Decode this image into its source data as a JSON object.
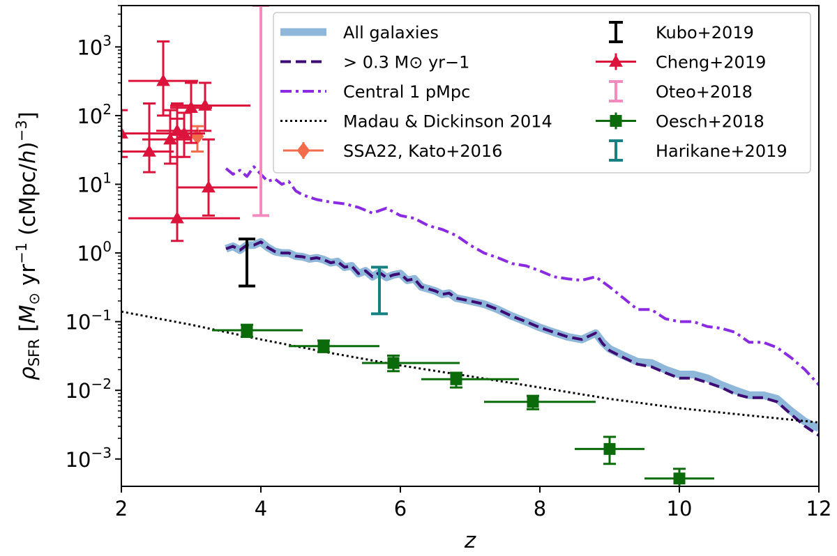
{
  "chart_data": {
    "type": "line",
    "title": "",
    "xlabel": "z",
    "ylabel": "ρSFR [M⊙ yr−1 (cMpc/h)−3]",
    "ylabel_parts": {
      "rho": "ρ",
      "rho_sub": "SFR",
      "bracket_open": " [",
      "m": "M",
      "sun": "⊙",
      "yr": " yr",
      "yr_exp": "−1",
      "units": " (cMpc/",
      "h": "h",
      "close": ")",
      "close_exp": "−3",
      "bracket_close": "]"
    },
    "xlim": [
      2,
      12
    ],
    "ylim": [
      0.0004,
      4000
    ],
    "yscale": "log",
    "grid": false,
    "legend_placement": "top-right",
    "x_ticks": [
      {
        "value": 2,
        "label": "2"
      },
      {
        "value": 4,
        "label": "4"
      },
      {
        "value": 6,
        "label": "6"
      },
      {
        "value": 8,
        "label": "8"
      },
      {
        "value": 10,
        "label": "10"
      },
      {
        "value": 12,
        "label": "12"
      }
    ],
    "y_ticks": [
      {
        "value": 0.001,
        "base": "10",
        "exp": "−3"
      },
      {
        "value": 0.01,
        "base": "10",
        "exp": "−2"
      },
      {
        "value": 0.1,
        "base": "10",
        "exp": "−1"
      },
      {
        "value": 1,
        "base": "10",
        "exp": "0"
      },
      {
        "value": 10,
        "base": "10",
        "exp": "1"
      },
      {
        "value": 100,
        "base": "10",
        "exp": "2"
      },
      {
        "value": 1000,
        "base": "10",
        "exp": "3"
      }
    ],
    "series": [
      {
        "key": "all",
        "name": "All galaxies",
        "style": "solid-thick",
        "color": "#8fb7d9",
        "x": [
          3.5,
          3.6,
          3.7,
          3.8,
          3.9,
          4.0,
          4.1,
          4.2,
          4.3,
          4.4,
          4.5,
          4.6,
          4.7,
          4.8,
          4.9,
          5.0,
          5.1,
          5.2,
          5.3,
          5.4,
          5.5,
          5.6,
          5.7,
          5.8,
          5.9,
          6.0,
          6.1,
          6.2,
          6.3,
          6.4,
          6.5,
          6.6,
          6.7,
          6.8,
          6.9,
          7.0,
          7.2,
          7.4,
          7.6,
          7.8,
          8.0,
          8.2,
          8.4,
          8.6,
          8.8,
          8.9,
          9.0,
          9.2,
          9.4,
          9.6,
          9.8,
          10.0,
          10.2,
          10.4,
          10.6,
          10.8,
          11.0,
          11.2,
          11.4,
          11.6,
          11.8,
          12.0
        ],
        "values": [
          1.15,
          1.25,
          1.1,
          1.3,
          1.3,
          1.45,
          1.2,
          1.05,
          1.0,
          1.0,
          0.9,
          0.88,
          0.82,
          0.85,
          0.8,
          0.72,
          0.75,
          0.62,
          0.65,
          0.5,
          0.55,
          0.45,
          0.52,
          0.44,
          0.48,
          0.5,
          0.4,
          0.42,
          0.32,
          0.3,
          0.28,
          0.25,
          0.26,
          0.22,
          0.21,
          0.2,
          0.18,
          0.15,
          0.12,
          0.1,
          0.082,
          0.07,
          0.06,
          0.055,
          0.068,
          0.05,
          0.04,
          0.032,
          0.026,
          0.025,
          0.02,
          0.017,
          0.017,
          0.015,
          0.012,
          0.01,
          0.0085,
          0.0085,
          0.0075,
          0.005,
          0.0035,
          0.0028
        ]
      },
      {
        "key": "sfr03",
        "name": "> 0.3 M⊙ yr−1",
        "style": "dashed",
        "color": "#3d0b73",
        "x": [
          3.5,
          3.6,
          3.7,
          3.8,
          3.9,
          4.0,
          4.1,
          4.2,
          4.3,
          4.4,
          4.5,
          4.6,
          4.7,
          4.8,
          4.9,
          5.0,
          5.1,
          5.2,
          5.3,
          5.4,
          5.5,
          5.6,
          5.7,
          5.8,
          5.9,
          6.0,
          6.1,
          6.2,
          6.3,
          6.4,
          6.5,
          6.6,
          6.7,
          6.8,
          6.9,
          7.0,
          7.2,
          7.4,
          7.6,
          7.8,
          8.0,
          8.2,
          8.4,
          8.6,
          8.8,
          8.9,
          9.0,
          9.2,
          9.4,
          9.6,
          9.8,
          10.0,
          10.2,
          10.4,
          10.6,
          10.8,
          11.0,
          11.2,
          11.4,
          11.6,
          11.8,
          12.0
        ],
        "values": [
          1.15,
          1.25,
          1.1,
          1.3,
          1.3,
          1.45,
          1.2,
          1.05,
          1.0,
          1.0,
          0.9,
          0.88,
          0.82,
          0.85,
          0.8,
          0.72,
          0.75,
          0.62,
          0.65,
          0.5,
          0.55,
          0.45,
          0.52,
          0.44,
          0.48,
          0.5,
          0.4,
          0.42,
          0.32,
          0.3,
          0.28,
          0.25,
          0.26,
          0.22,
          0.21,
          0.2,
          0.18,
          0.15,
          0.12,
          0.1,
          0.082,
          0.07,
          0.06,
          0.055,
          0.068,
          0.048,
          0.038,
          0.03,
          0.024,
          0.022,
          0.018,
          0.015,
          0.015,
          0.013,
          0.011,
          0.0088,
          0.0078,
          0.0078,
          0.0068,
          0.0045,
          0.003,
          0.0022
        ]
      },
      {
        "key": "central",
        "name": "Central 1 pMpc",
        "style": "dashdot",
        "color": "#8a2be2",
        "x": [
          3.5,
          3.6,
          3.7,
          3.8,
          3.9,
          4.0,
          4.1,
          4.2,
          4.3,
          4.4,
          4.5,
          4.6,
          4.8,
          5.0,
          5.2,
          5.4,
          5.6,
          5.8,
          6.0,
          6.2,
          6.4,
          6.6,
          6.8,
          7.0,
          7.2,
          7.4,
          7.6,
          7.8,
          8.0,
          8.2,
          8.4,
          8.6,
          8.8,
          9.0,
          9.2,
          9.4,
          9.6,
          9.8,
          10.0,
          10.2,
          10.4,
          10.6,
          10.8,
          11.0,
          11.2,
          11.4,
          11.6,
          11.8,
          12.0
        ],
        "values": [
          17,
          14,
          16,
          13,
          18,
          14,
          11,
          12,
          10,
          11,
          8,
          7,
          6,
          5.5,
          5.2,
          4.6,
          3.8,
          4.5,
          3.5,
          3.2,
          2.5,
          2.2,
          1.8,
          1.3,
          1.0,
          0.85,
          0.7,
          0.65,
          0.55,
          0.45,
          0.42,
          0.4,
          0.45,
          0.32,
          0.22,
          0.15,
          0.15,
          0.11,
          0.1,
          0.1,
          0.085,
          0.08,
          0.07,
          0.05,
          0.05,
          0.042,
          0.03,
          0.02,
          0.012
        ]
      },
      {
        "key": "madau",
        "name": "Madau & Dickinson 2014",
        "style": "dotted",
        "color": "#000000",
        "x": [
          2,
          3,
          4,
          5,
          6,
          7,
          8,
          9,
          10,
          11,
          12
        ],
        "values": [
          0.14,
          0.09,
          0.055,
          0.035,
          0.023,
          0.016,
          0.011,
          0.0075,
          0.0055,
          0.0043,
          0.0034
        ]
      }
    ],
    "observations": [
      {
        "key": "kato",
        "name": "SSA22, Kato+2016",
        "marker": "diamond",
        "color": "#f26b4b",
        "points": [
          {
            "x": 3.09,
            "y": 50,
            "y_low": 30,
            "y_high": 70,
            "x_low": 3.09,
            "x_high": 3.09
          }
        ]
      },
      {
        "key": "kubo",
        "name": "Kubo+2019",
        "marker": "none",
        "color": "#000000",
        "points": [
          {
            "x": 3.8,
            "y": 0.75,
            "y_low": 0.33,
            "y_high": 1.6,
            "x_low": 3.8,
            "x_high": 3.8
          }
        ]
      },
      {
        "key": "cheng",
        "name": "Cheng+2019",
        "marker": "triangle",
        "color": "#dc143c",
        "points": [
          {
            "x": 2.0,
            "y": 55,
            "y_low": 25,
            "y_high": 120,
            "x_low": 1.9,
            "x_high": 2.6
          },
          {
            "x": 2.4,
            "y": 30,
            "y_low": 15,
            "y_high": 150,
            "x_low": 1.95,
            "x_high": 2.75
          },
          {
            "x": 2.6,
            "y": 320,
            "y_low": 100,
            "y_high": 1200,
            "x_low": 2.1,
            "x_high": 3.1
          },
          {
            "x": 2.7,
            "y": 45,
            "y_low": 20,
            "y_high": 120,
            "x_low": 2.3,
            "x_high": 3.0
          },
          {
            "x": 2.8,
            "y": 60,
            "y_low": 25,
            "y_high": 150,
            "x_low": 2.5,
            "x_high": 3.1
          },
          {
            "x": 2.9,
            "y": 55,
            "y_low": 25,
            "y_high": 110,
            "x_low": 2.6,
            "x_high": 3.2
          },
          {
            "x": 3.0,
            "y": 130,
            "y_low": 40,
            "y_high": 300,
            "x_low": 2.7,
            "x_high": 3.3
          },
          {
            "x": 3.2,
            "y": 140,
            "y_low": 60,
            "y_high": 300,
            "x_low": 2.7,
            "x_high": 3.85
          },
          {
            "x": 2.8,
            "y": 3.2,
            "y_low": 1.5,
            "y_high": 90,
            "x_low": 2.1,
            "x_high": 3.7
          },
          {
            "x": 3.25,
            "y": 9,
            "y_low": 3.5,
            "y_high": 45,
            "x_low": 2.8,
            "x_high": 3.95
          }
        ]
      },
      {
        "key": "oteo",
        "name": "Oteo+2018",
        "marker": "none",
        "color": "#f48bbf",
        "points": [
          {
            "x": 4.0,
            "y": 3.5,
            "y_low": 3.5,
            "y_high": 4000,
            "x_low": 4.0,
            "x_high": 4.0
          }
        ]
      },
      {
        "key": "oesch",
        "name": "Oesch+2018",
        "marker": "square",
        "color": "#0b6b0b",
        "points": [
          {
            "x": 3.8,
            "y": 0.075,
            "y_low": 0.06,
            "y_high": 0.09,
            "x_low": 3.3,
            "x_high": 4.6
          },
          {
            "x": 4.9,
            "y": 0.044,
            "y_low": 0.036,
            "y_high": 0.053,
            "x_low": 4.4,
            "x_high": 5.7
          },
          {
            "x": 5.9,
            "y": 0.025,
            "y_low": 0.019,
            "y_high": 0.032,
            "x_low": 5.45,
            "x_high": 6.85
          },
          {
            "x": 6.8,
            "y": 0.0145,
            "y_low": 0.011,
            "y_high": 0.018,
            "x_low": 6.3,
            "x_high": 7.7
          },
          {
            "x": 7.9,
            "y": 0.0068,
            "y_low": 0.0053,
            "y_high": 0.0083,
            "x_low": 7.2,
            "x_high": 8.8
          },
          {
            "x": 9.0,
            "y": 0.0014,
            "y_low": 0.00085,
            "y_high": 0.0021,
            "x_low": 8.5,
            "x_high": 9.5
          },
          {
            "x": 10.0,
            "y": 0.00052,
            "y_low": 0.00035,
            "y_high": 0.00072,
            "x_low": 9.5,
            "x_high": 10.5
          }
        ]
      },
      {
        "key": "harikane",
        "name": "Harikane+2019",
        "marker": "none",
        "color": "#178080",
        "points": [
          {
            "x": 5.7,
            "y": 0.3,
            "y_low": 0.13,
            "y_high": 0.62,
            "x_low": 5.7,
            "x_high": 5.7
          }
        ]
      }
    ],
    "legend_left": [
      {
        "label": "All galaxies",
        "ref": "all"
      },
      {
        "label": "> 0.3 M⊙ yr−1",
        "ref": "sfr03"
      },
      {
        "label": "Central 1 pMpc",
        "ref": "central"
      },
      {
        "label": "Madau & Dickinson 2014",
        "ref": "madau"
      },
      {
        "label": "SSA22, Kato+2016",
        "ref": "kato"
      }
    ],
    "legend_right": [
      {
        "label": "Kubo+2019",
        "ref": "kubo"
      },
      {
        "label": "Cheng+2019",
        "ref": "cheng"
      },
      {
        "label": "Oteo+2018",
        "ref": "oteo"
      },
      {
        "label": "Oesch+2018",
        "ref": "oesch"
      },
      {
        "label": "Harikane+2019",
        "ref": "harikane"
      }
    ]
  }
}
